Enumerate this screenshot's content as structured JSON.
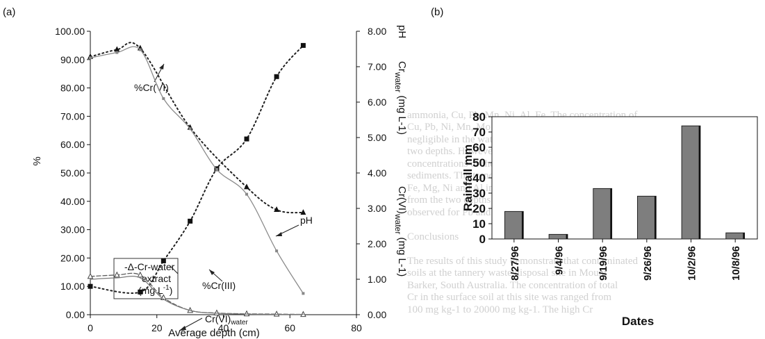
{
  "panel_a": {
    "label": "(a)",
    "xlabel": "Average depth (cm)",
    "ylabel_left": "%",
    "ylabel_right_top": "pH",
    "ylabel_right_mid": "Cr",
    "ylabel_right_mid_sub": "water",
    "ylabel_right_mid_unit": " (mg L-1)",
    "ylabel_right_low": "Cr(VI)",
    "ylabel_right_low_sub": "water",
    "ylabel_right_low_unit": " (mg L-1)",
    "y_left_ticks": [
      "0.00",
      "10.00",
      "20.00",
      "30.00",
      "40.00",
      "50.00",
      "60.00",
      "70.00",
      "80.00",
      "90.00",
      "100.00"
    ],
    "y_right_ticks": [
      "0.00",
      "1.00",
      "2.00",
      "3.00",
      "4.00",
      "5.00",
      "6.00",
      "7.00",
      "8.00"
    ],
    "x_ticks": [
      "0",
      "20",
      "40",
      "60",
      "80"
    ],
    "annotations": {
      "cr6_pct": "%Cr(VI)",
      "cr3_pct": "%Cr(III)",
      "ph": "pH",
      "cr6_water": "Cr(VI)",
      "cr6_water_sub": "water",
      "legend_line1": "-Δ-Cr-water",
      "legend_line2": "extract",
      "legend_line3": "(mg L",
      "legend_sup": "-1",
      "legend_close": ")"
    }
  },
  "panel_b": {
    "label": "(b)",
    "ylabel": "Rainfall mm",
    "xlabel": "Dates"
  },
  "background_text": [
    "",
    "",
    "",
    "",
    "",
    "",
    "",
    "",
    "",
    "ammonia, Cu, Pb, Mn, Ni, Al, Fe. The concentration of",
    "Cu, Pb, Ni, Mn, Mo and Zn were found to be",
    "negligible in the water samples collected from the",
    "two depths. However, relatively high",
    "concentrations of these metals were noted in the",
    "sediments. The trend of concentration noted for",
    "Fe, Mg, Ni and Al in the water samples obtained",
    "from the two depths was essentially similar to that",
    "observed for Pb and S.",
    "",
    "Conclusions",
    "",
    "The results of this study demonstrate that contaminated",
    "soils at the tannery waste disposal site in Mount",
    "Barker, South Australia. The concentration of total",
    "Cr in the surface soil at this site was ranged from",
    "100 mg kg-1 to 20000 mg kg-1. The high Cr"
  ],
  "chart_data": [
    {
      "type": "line",
      "panel": "a",
      "xlabel": "Average depth (cm)",
      "xlim": [
        0,
        80
      ],
      "ylim_left": [
        0,
        100
      ],
      "ylim_right": [
        0,
        8
      ],
      "ylabel": "%",
      "ylabel_right": "pH / Cr water (mg L-1) / Cr(VI) water (mg L-1)",
      "series": [
        {
          "name": "%Cr(VI)",
          "axis": "left",
          "style": "dotted",
          "marker": "triangle",
          "color": "#1f1f1f",
          "x": [
            0,
            8,
            15,
            30,
            47,
            56,
            64
          ],
          "y": [
            91.0,
            93.5,
            94.0,
            66.0,
            45.0,
            37.0,
            36.0
          ]
        },
        {
          "name": "%Cr(III)",
          "axis": "left",
          "style": "dotted",
          "marker": "square",
          "color": "#1f1f1f",
          "x": [
            0,
            15,
            22,
            30,
            38,
            47,
            56,
            64
          ],
          "y": [
            10.0,
            8.0,
            19.0,
            33.0,
            51.5,
            62.0,
            84.0,
            95.0
          ]
        },
        {
          "name": "Cr-water extract",
          "axis": "left",
          "style": "dashed",
          "marker": "triangle-open",
          "color": "#5a5a5a",
          "x": [
            0,
            8,
            15,
            22,
            30,
            38,
            47,
            56,
            64
          ],
          "y": [
            13.5,
            14.0,
            14.0,
            6.0,
            1.5,
            0.6,
            0.3,
            0.2,
            0.1
          ]
        },
        {
          "name": "Cr(VI) water",
          "axis": "left",
          "style": "solid",
          "marker": "none",
          "color": "#7a7a7a",
          "x": [
            0,
            8,
            15,
            22,
            30,
            38,
            47,
            56,
            64
          ],
          "y": [
            12.5,
            13.0,
            13.0,
            5.5,
            1.5,
            0.5,
            0.2,
            0.1,
            0.1
          ]
        },
        {
          "name": "pH",
          "axis": "right",
          "style": "solid",
          "marker": "square-small",
          "color": "#8a8a8a",
          "x": [
            0,
            8,
            15,
            22,
            30,
            38,
            47,
            56,
            64
          ],
          "y": [
            7.25,
            7.4,
            7.48,
            6.1,
            5.25,
            4.1,
            3.4,
            1.8,
            0.6
          ]
        }
      ]
    },
    {
      "type": "bar",
      "panel": "b",
      "title": "",
      "xlabel": "Dates",
      "ylabel": "Rainfall mm",
      "ylim": [
        0,
        80
      ],
      "yticks": [
        0,
        10,
        20,
        30,
        40,
        50,
        60,
        70,
        80
      ],
      "categories": [
        "8/27/96",
        "9/4/96",
        "9/19/96",
        "9/26/96",
        "10/2/96",
        "10/8/96"
      ],
      "values": [
        18,
        3,
        33,
        28,
        74,
        4
      ],
      "colors": {
        "bar": "#7e7e7e",
        "edge": "#222222"
      }
    }
  ]
}
